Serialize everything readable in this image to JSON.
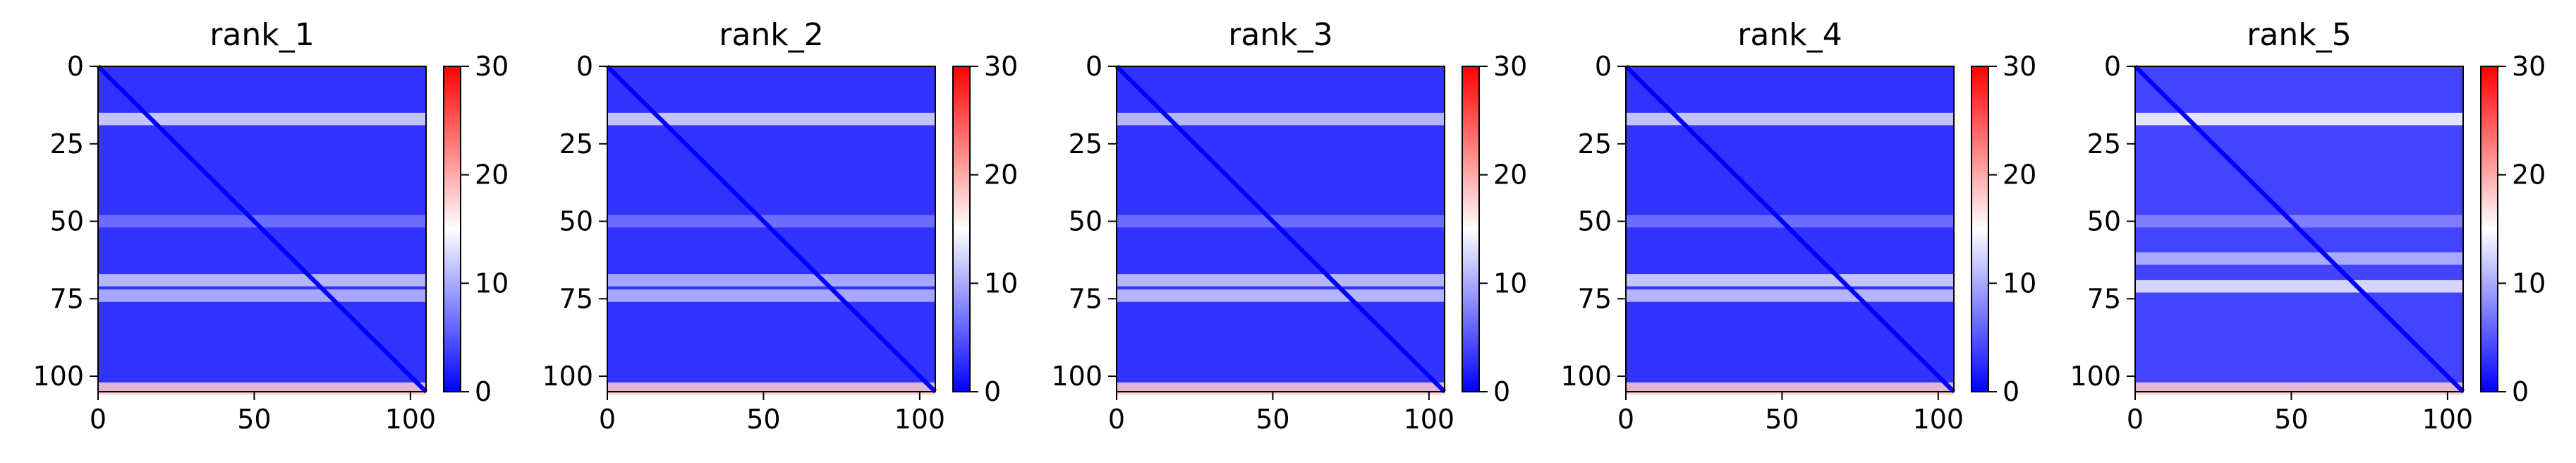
{
  "colormap": [
    "#0000ff",
    "#ffffff",
    "#ff0000"
  ],
  "chart_data": [
    {
      "type": "heatmap",
      "title": "rank_1",
      "xlabel": "",
      "ylabel": "",
      "xlim": [
        0,
        105
      ],
      "ylim": [
        105,
        0
      ],
      "xticks": [
        "0",
        "50",
        "100"
      ],
      "yticks": [
        "0",
        "25",
        "50",
        "75",
        "100"
      ],
      "colorbar": {
        "range": [
          0,
          30
        ],
        "ticks": [
          "0",
          "10",
          "20",
          "30"
        ]
      },
      "background_value": 3,
      "bands": [
        {
          "center": 17,
          "value": 13
        },
        {
          "center": 50,
          "value": 7
        },
        {
          "center": 69,
          "value": 12
        },
        {
          "center": 74,
          "value": 11
        },
        {
          "center": 104,
          "value": 18
        }
      ]
    },
    {
      "type": "heatmap",
      "title": "rank_2",
      "xlabel": "",
      "ylabel": "",
      "xlim": [
        0,
        105
      ],
      "ylim": [
        105,
        0
      ],
      "xticks": [
        "0",
        "50",
        "100"
      ],
      "yticks": [
        "0",
        "25",
        "50",
        "75",
        "100"
      ],
      "colorbar": {
        "range": [
          0,
          30
        ],
        "ticks": [
          "0",
          "10",
          "20",
          "30"
        ]
      },
      "background_value": 3,
      "bands": [
        {
          "center": 17,
          "value": 13
        },
        {
          "center": 50,
          "value": 7
        },
        {
          "center": 69,
          "value": 11
        },
        {
          "center": 74,
          "value": 11
        },
        {
          "center": 104,
          "value": 18
        }
      ]
    },
    {
      "type": "heatmap",
      "title": "rank_3",
      "xlabel": "",
      "ylabel": "",
      "xlim": [
        0,
        105
      ],
      "ylim": [
        105,
        0
      ],
      "xticks": [
        "0",
        "50",
        "100"
      ],
      "yticks": [
        "0",
        "25",
        "50",
        "75",
        "100"
      ],
      "colorbar": {
        "range": [
          0,
          30
        ],
        "ticks": [
          "0",
          "10",
          "20",
          "30"
        ]
      },
      "background_value": 3,
      "bands": [
        {
          "center": 17,
          "value": 12
        },
        {
          "center": 50,
          "value": 7
        },
        {
          "center": 69,
          "value": 12
        },
        {
          "center": 74,
          "value": 12
        },
        {
          "center": 104,
          "value": 18
        }
      ]
    },
    {
      "type": "heatmap",
      "title": "rank_4",
      "xlabel": "",
      "ylabel": "",
      "xlim": [
        0,
        105
      ],
      "ylim": [
        105,
        0
      ],
      "xticks": [
        "0",
        "50",
        "100"
      ],
      "yticks": [
        "0",
        "25",
        "50",
        "75",
        "100"
      ],
      "colorbar": {
        "range": [
          0,
          30
        ],
        "ticks": [
          "0",
          "10",
          "20",
          "30"
        ]
      },
      "background_value": 3,
      "bands": [
        {
          "center": 17,
          "value": 13
        },
        {
          "center": 50,
          "value": 7
        },
        {
          "center": 69,
          "value": 13
        },
        {
          "center": 74,
          "value": 12
        },
        {
          "center": 104,
          "value": 18
        }
      ]
    },
    {
      "type": "heatmap",
      "title": "rank_5",
      "xlabel": "",
      "ylabel": "",
      "xlim": [
        0,
        105
      ],
      "ylim": [
        105,
        0
      ],
      "xticks": [
        "0",
        "50",
        "100"
      ],
      "yticks": [
        "0",
        "25",
        "50",
        "75",
        "100"
      ],
      "colorbar": {
        "range": [
          0,
          30
        ],
        "ticks": [
          "0",
          "10",
          "20",
          "30"
        ]
      },
      "background_value": 4,
      "bands": [
        {
          "center": 17,
          "value": 15
        },
        {
          "center": 50,
          "value": 8
        },
        {
          "center": 62,
          "value": 11
        },
        {
          "center": 71,
          "value": 14
        },
        {
          "center": 104,
          "value": 18
        }
      ]
    }
  ]
}
